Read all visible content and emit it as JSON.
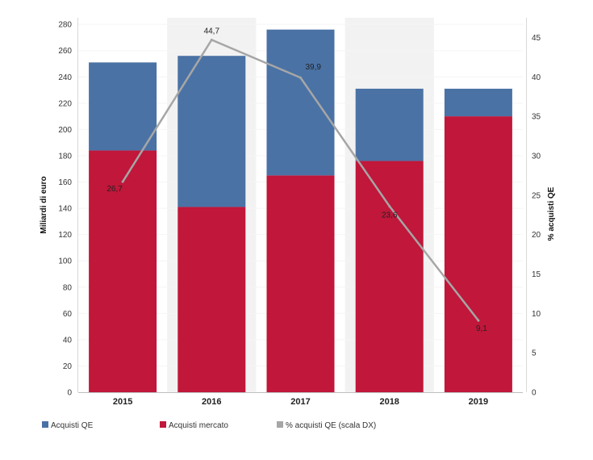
{
  "chart_data": {
    "type": "bar",
    "stacked": true,
    "title": "",
    "categories": [
      "2015",
      "2016",
      "2017",
      "2018",
      "2019"
    ],
    "series": [
      {
        "name": "Acquisti mercato",
        "color": "#C0173A",
        "values": [
          184,
          141,
          165,
          176,
          210
        ]
      },
      {
        "name": "Acquisti QE",
        "color": "#4A72A5",
        "values": [
          67,
          115,
          111,
          55,
          21
        ]
      }
    ],
    "line_series": {
      "name": "% acquisti QE (scala DX)",
      "color": "#A6A6A6",
      "values": [
        26.7,
        44.7,
        39.9,
        23.6,
        9.1
      ],
      "labels": [
        "26,7",
        "44,7",
        "39,9",
        "23,6",
        "9,1"
      ]
    },
    "ylabel": "Miliardi di euro",
    "y2label": "% acquisti QE",
    "ylim": [
      0,
      285
    ],
    "y2lim": [
      0,
      47.5
    ],
    "yticks": [
      0,
      20,
      40,
      60,
      80,
      100,
      120,
      140,
      160,
      180,
      200,
      220,
      240,
      260,
      280
    ],
    "y2ticks": [
      0,
      5,
      10,
      15,
      20,
      25,
      30,
      35,
      40,
      45
    ],
    "shaded_categories": [
      "2016",
      "2018"
    ],
    "shade_color": "#F2F2F2",
    "legend": [
      {
        "label": "Acquisti QE",
        "color": "#4A72A5"
      },
      {
        "label": "Acquisti mercato",
        "color": "#C0173A"
      },
      {
        "label": "% acquisti QE (scala DX)",
        "color": "#A6A6A6"
      }
    ],
    "legend_position": "bottom"
  }
}
